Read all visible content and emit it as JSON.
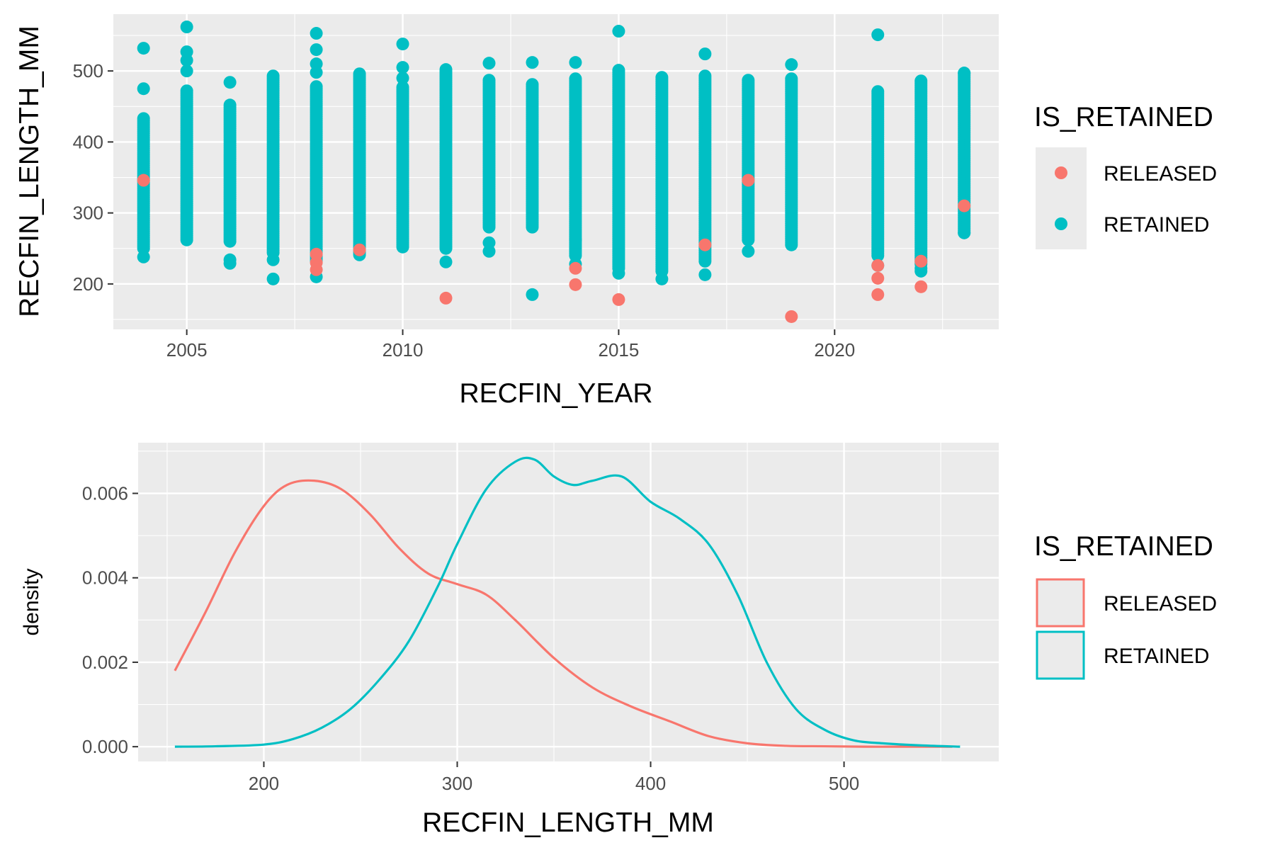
{
  "chart_data": [
    {
      "type": "scatter",
      "title": "",
      "xlabel": "RECFIN_YEAR",
      "ylabel": "RECFIN_LENGTH_MM",
      "xlim": [
        2003.3,
        2023.8
      ],
      "ylim": [
        136,
        580
      ],
      "x_ticks": [
        2005,
        2010,
        2015,
        2020
      ],
      "x_tick_labels": [
        "2005",
        "2010",
        "2015",
        "2020"
      ],
      "y_ticks": [
        200,
        300,
        400,
        500
      ],
      "y_tick_labels": [
        "200",
        "300",
        "400",
        "500"
      ],
      "grid": true,
      "legend": {
        "title": "IS_RETAINED",
        "position": "right",
        "entries": [
          {
            "label": "RELEASED",
            "color": "#F8766D"
          },
          {
            "label": "RETAINED",
            "color": "#00BFC4"
          }
        ]
      },
      "series": [
        {
          "name": "RETAINED",
          "color": "#00BFC4",
          "ranges": [
            {
              "x": 2004,
              "min": 250,
              "max": 435
            },
            {
              "x": 2005,
              "min": 262,
              "max": 472
            },
            {
              "x": 2006,
              "min": 260,
              "max": 452
            },
            {
              "x": 2007,
              "min": 244,
              "max": 495
            },
            {
              "x": 2008,
              "min": 232,
              "max": 478
            },
            {
              "x": 2009,
              "min": 244,
              "max": 498
            },
            {
              "x": 2010,
              "min": 252,
              "max": 478
            },
            {
              "x": 2011,
              "min": 250,
              "max": 502
            },
            {
              "x": 2012,
              "min": 280,
              "max": 488
            },
            {
              "x": 2013,
              "min": 280,
              "max": 482
            },
            {
              "x": 2014,
              "min": 240,
              "max": 490
            },
            {
              "x": 2015,
              "min": 222,
              "max": 502
            },
            {
              "x": 2016,
              "min": 218,
              "max": 492
            },
            {
              "x": 2017,
              "min": 232,
              "max": 495
            },
            {
              "x": 2018,
              "min": 262,
              "max": 488
            },
            {
              "x": 2019,
              "min": 255,
              "max": 490
            },
            {
              "x": 2021,
              "min": 240,
              "max": 472
            },
            {
              "x": 2022,
              "min": 228,
              "max": 486
            },
            {
              "x": 2023,
              "min": 272,
              "max": 497
            }
          ],
          "points": [
            [
              2004,
              532
            ],
            [
              2004,
              475
            ],
            [
              2004,
              238
            ],
            [
              2005,
              562
            ],
            [
              2005,
              527
            ],
            [
              2005,
              515
            ],
            [
              2005,
              500
            ],
            [
              2006,
              484
            ],
            [
              2006,
              234
            ],
            [
              2006,
              229
            ],
            [
              2007,
              207
            ],
            [
              2007,
              234
            ],
            [
              2008,
              553
            ],
            [
              2008,
              530
            ],
            [
              2008,
              510
            ],
            [
              2008,
              498
            ],
            [
              2008,
              210
            ],
            [
              2009,
              241
            ],
            [
              2010,
              538
            ],
            [
              2010,
              505
            ],
            [
              2010,
              490
            ],
            [
              2011,
              231
            ],
            [
              2012,
              511
            ],
            [
              2012,
              246
            ],
            [
              2012,
              258
            ],
            [
              2013,
              512
            ],
            [
              2013,
              185
            ],
            [
              2014,
              512
            ],
            [
              2014,
              228
            ],
            [
              2014,
              262
            ],
            [
              2015,
              556
            ],
            [
              2015,
              215
            ],
            [
              2016,
              207
            ],
            [
              2017,
              524
            ],
            [
              2017,
              213
            ],
            [
              2018,
              246
            ],
            [
              2019,
              509
            ],
            [
              2021,
              551
            ],
            [
              2021,
              226
            ],
            [
              2022,
              222
            ],
            [
              2022,
              218
            ],
            [
              2023,
              497
            ],
            [
              2023,
              272
            ]
          ]
        },
        {
          "name": "RELEASED",
          "color": "#F8766D",
          "points": [
            [
              2004,
              346
            ],
            [
              2008,
              242
            ],
            [
              2008,
              230
            ],
            [
              2008,
              220
            ],
            [
              2009,
              248
            ],
            [
              2011,
              180
            ],
            [
              2014,
              222
            ],
            [
              2014,
              199
            ],
            [
              2015,
              178
            ],
            [
              2017,
              255
            ],
            [
              2018,
              346
            ],
            [
              2019,
              154
            ],
            [
              2021,
              226
            ],
            [
              2021,
              208
            ],
            [
              2021,
              185
            ],
            [
              2022,
              232
            ],
            [
              2022,
              196
            ],
            [
              2023,
              310
            ]
          ]
        }
      ]
    },
    {
      "type": "line",
      "title": "",
      "xlabel": "RECFIN_LENGTH_MM",
      "ylabel": "density",
      "xlim": [
        135,
        580
      ],
      "ylim": [
        -0.00035,
        0.0072
      ],
      "x_ticks": [
        200,
        300,
        400,
        500
      ],
      "x_tick_labels": [
        "200",
        "300",
        "400",
        "500"
      ],
      "y_ticks": [
        0,
        0.002,
        0.004,
        0.006
      ],
      "y_tick_labels": [
        "0.000",
        "0.002",
        "0.004",
        "0.006"
      ],
      "grid": true,
      "legend": {
        "title": "IS_RETAINED",
        "position": "right",
        "entries": [
          {
            "label": "RELEASED",
            "color": "#F8766D"
          },
          {
            "label": "RETAINED",
            "color": "#00BFC4"
          }
        ]
      },
      "series": [
        {
          "name": "RELEASED",
          "color": "#F8766D",
          "x": [
            154,
            170,
            185,
            200,
            212,
            226,
            240,
            255,
            270,
            285,
            300,
            315,
            330,
            350,
            370,
            390,
            410,
            430,
            450,
            470,
            490,
            510,
            530,
            556
          ],
          "y": [
            0.0018,
            0.0032,
            0.0046,
            0.0057,
            0.0062,
            0.0063,
            0.0061,
            0.0055,
            0.0047,
            0.0041,
            0.00385,
            0.0036,
            0.003,
            0.0021,
            0.0014,
            0.00095,
            0.0006,
            0.00025,
            8e-05,
            2e-05,
            1e-05,
            0.0,
            0.0,
            0.0
          ]
        },
        {
          "name": "RETAINED",
          "color": "#00BFC4",
          "x": [
            154,
            175,
            200,
            215,
            230,
            245,
            260,
            275,
            290,
            300,
            315,
            330,
            340,
            350,
            360,
            370,
            385,
            400,
            415,
            430,
            445,
            460,
            475,
            490,
            505,
            520,
            540,
            560
          ],
          "y": [
            0.0,
            1e-05,
            5e-05,
            0.00018,
            0.00045,
            0.0009,
            0.0016,
            0.0025,
            0.0038,
            0.0048,
            0.0061,
            0.00675,
            0.0068,
            0.0064,
            0.0062,
            0.0063,
            0.0064,
            0.0058,
            0.0054,
            0.0048,
            0.0036,
            0.002,
            0.0009,
            0.0004,
            0.00015,
            8e-05,
            3e-05,
            0.0
          ]
        }
      ]
    }
  ]
}
